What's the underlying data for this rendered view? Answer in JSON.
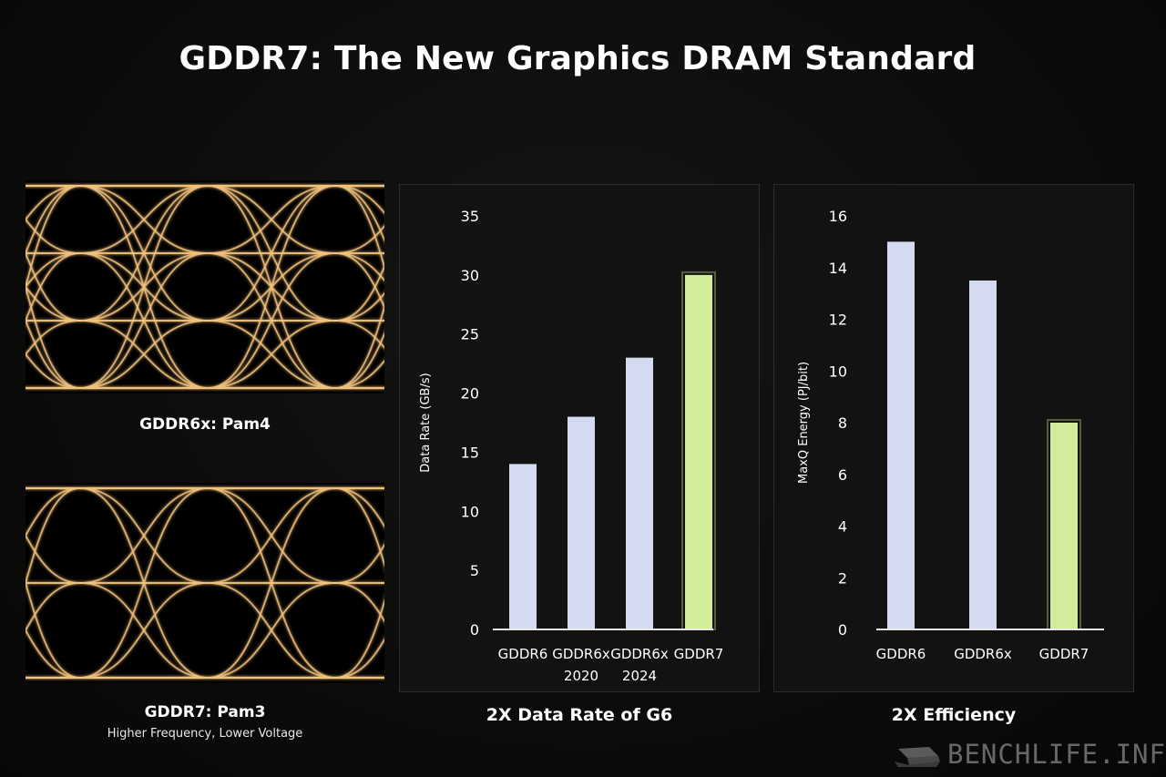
{
  "title": "GDDR7: The New Graphics DRAM Standard",
  "eye_diagrams": [
    {
      "label": "GDDR6x: Pam4",
      "sublabel": "",
      "levels": 4
    },
    {
      "label": "GDDR7: Pam3",
      "sublabel": "Higher Frequency, Lower Voltage",
      "levels": 3
    }
  ],
  "colors": {
    "bar_default": "#d4daf0",
    "bar_highlight": "#d3ee9a",
    "eye_trace": "#f2c27c",
    "panel_bg": "#121212"
  },
  "watermark": {
    "text": "BENCHLIFE.INFO",
    "icon": "laptop-logo-icon"
  },
  "chart_data": [
    {
      "type": "bar",
      "caption": "2X Data Rate of G6",
      "ylabel": "Data Rate (GB/s)",
      "ylim": [
        0,
        35
      ],
      "yticks": [
        0,
        5,
        10,
        15,
        20,
        25,
        30,
        35
      ],
      "categories": [
        [
          "GDDR6"
        ],
        [
          "GDDR6x",
          "2020"
        ],
        [
          "GDDR6x",
          "2024"
        ],
        [
          "GDDR7"
        ]
      ],
      "values": [
        14,
        18,
        23,
        30
      ],
      "highlight": [
        false,
        false,
        false,
        true
      ]
    },
    {
      "type": "bar",
      "caption": "2X Efficiency",
      "ylabel": "MaxQ Energy (PJ/bit)",
      "ylim": [
        0,
        16
      ],
      "yticks": [
        0,
        2,
        4,
        6,
        8,
        10,
        12,
        14,
        16
      ],
      "categories": [
        [
          "GDDR6"
        ],
        [
          "GDDR6x"
        ],
        [
          "GDDR7"
        ]
      ],
      "values": [
        15,
        13.5,
        8
      ],
      "highlight": [
        false,
        false,
        true
      ]
    }
  ]
}
